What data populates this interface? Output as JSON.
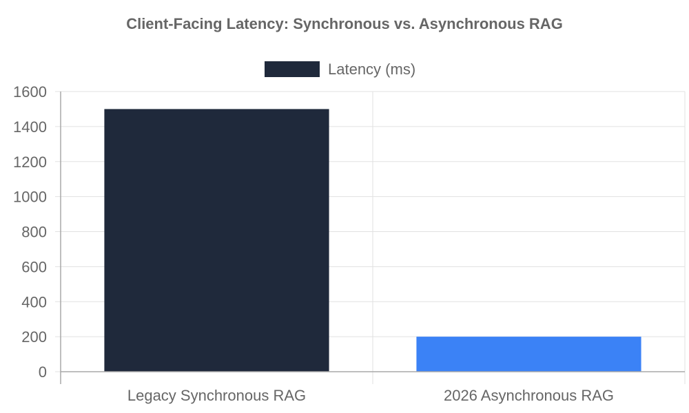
{
  "chart_data": {
    "type": "bar",
    "title": "Client-Facing Latency: Synchronous vs. Asynchronous RAG",
    "categories": [
      "Legacy Synchronous RAG",
      "2026 Asynchronous RAG"
    ],
    "series": [
      {
        "name": "Latency (ms)",
        "values": [
          1500,
          200
        ],
        "colors": [
          "#1f293b",
          "#3b82f6"
        ]
      }
    ],
    "legend_color": "#1f293b",
    "legend_position": "top-center",
    "ylim": [
      0,
      1600
    ],
    "yticks": [
      0,
      200,
      400,
      600,
      800,
      1000,
      1200,
      1400,
      1600
    ],
    "grid": true
  }
}
